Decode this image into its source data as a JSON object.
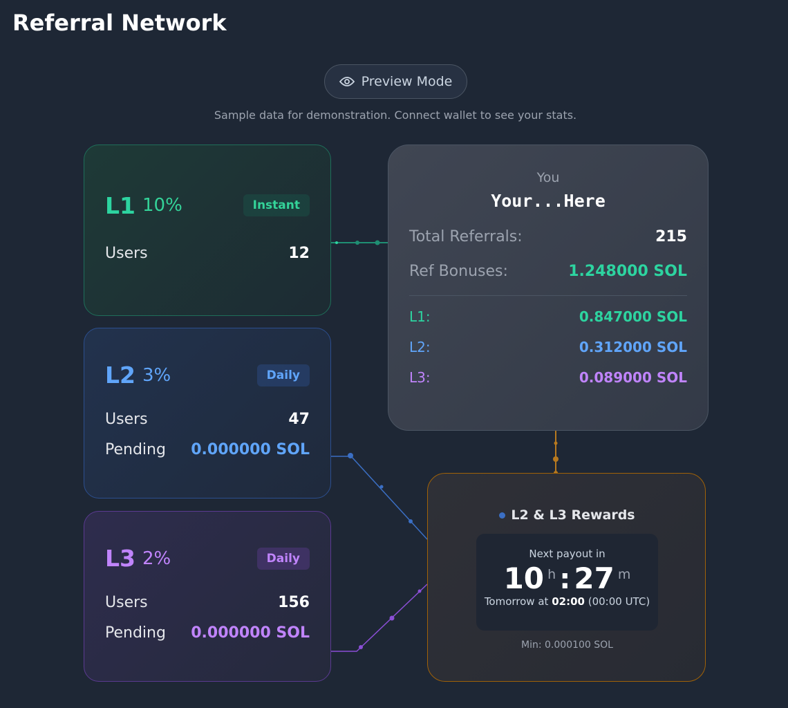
{
  "header": {
    "title": "Referral Network"
  },
  "preview": {
    "label": "Preview Mode",
    "note": "Sample data for demonstration. Connect wallet to see your stats."
  },
  "levels": [
    {
      "name": "L1",
      "rate": "10%",
      "badge": "Instant",
      "rows": [
        {
          "label": "Users",
          "value": 12
        }
      ]
    },
    {
      "name": "L2",
      "rate": "3%",
      "badge": "Daily",
      "rows": [
        {
          "label": "Users",
          "value": 47
        },
        {
          "label": "Pending",
          "value": "0.000000 SOL"
        }
      ]
    },
    {
      "name": "L3",
      "rate": "2%",
      "badge": "Daily",
      "rows": [
        {
          "label": "Users",
          "value": 156
        },
        {
          "label": "Pending",
          "value": "0.000000 SOL"
        }
      ]
    }
  ],
  "you": {
    "label": "You",
    "address": "Your...Here",
    "stats": [
      {
        "label": "Total Referrals:",
        "value": 215
      },
      {
        "label": "Ref Bonuses:",
        "value": "1.248000 SOL"
      }
    ],
    "levels": [
      {
        "label": "L1:",
        "value": "0.847000 SOL"
      },
      {
        "label": "L2:",
        "value": "0.312000 SOL"
      },
      {
        "label": "L3:",
        "value": "0.089000 SOL"
      }
    ]
  },
  "rewards": {
    "title": "L2 & L3 Rewards",
    "next_label": "Next payout in",
    "hours": "10",
    "h": "h",
    "sep": ":",
    "minutes": "27",
    "m": "m",
    "schedule_prefix": "Tomorrow at",
    "schedule_time": "02:00",
    "schedule_suffix": "(00:00 UTC)",
    "min": "Min: 0.000100 SOL"
  }
}
